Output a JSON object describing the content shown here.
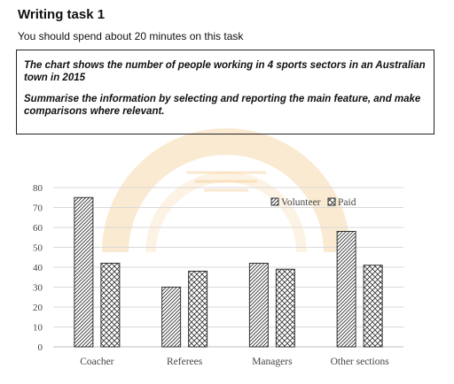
{
  "header": {
    "title": "Writing task 1",
    "instruction": "You should spend about 20 minutes on this task"
  },
  "prompt": {
    "line1": "The chart shows the number of people working in 4 sports sectors in an Australian town in 2015",
    "line2": "Summarise the information by selecting and reporting the main feature, and make comparisons where relevant."
  },
  "colors": {
    "watermark": "#f2c27a",
    "bar_stroke": "#333333",
    "grid": "#d9d9d9"
  },
  "chart_data": {
    "type": "bar",
    "categories": [
      "Coacher",
      "Referees",
      "Managers",
      "Other sections"
    ],
    "series": [
      {
        "name": "Volunteer",
        "values": [
          75,
          30,
          42,
          58
        ],
        "pattern": "diagonal"
      },
      {
        "name": "Paid",
        "values": [
          42,
          38,
          39,
          41
        ],
        "pattern": "crosshatch"
      }
    ],
    "ylim": [
      0,
      80
    ],
    "yticks": [
      "0",
      "10",
      "20",
      "30",
      "40",
      "50",
      "60",
      "70",
      "80"
    ],
    "title": "",
    "xlabel": "",
    "ylabel": "",
    "grid": true,
    "legend_position": "top-right"
  }
}
